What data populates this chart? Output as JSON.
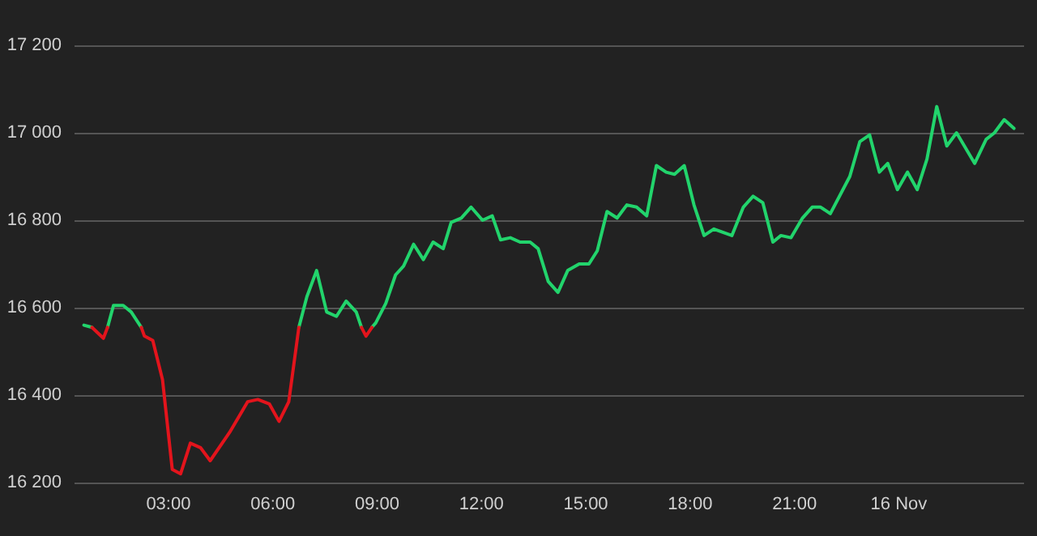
{
  "chart_data": {
    "type": "line",
    "x": [
      0.57,
      0.8,
      1.13,
      1.25,
      1.42,
      1.7,
      1.93,
      2.22,
      2.31,
      2.55,
      2.83,
      3.11,
      3.35,
      3.63,
      3.92,
      4.2,
      4.76,
      5.28,
      5.57,
      5.9,
      6.18,
      6.46,
      6.75,
      6.98,
      7.26,
      7.55,
      7.83,
      8.11,
      8.4,
      8.55,
      8.68,
      8.85,
      8.96,
      9.25,
      9.53,
      9.76,
      10.05,
      10.33,
      10.61,
      10.9,
      11.13,
      11.42,
      11.7,
      12.03,
      12.31,
      12.55,
      12.83,
      13.11,
      13.4,
      13.63,
      13.92,
      14.2,
      14.48,
      14.81,
      15.09,
      15.33,
      15.61,
      15.9,
      16.18,
      16.46,
      16.75,
      17.03,
      17.31,
      17.55,
      17.83,
      18.11,
      18.4,
      18.68,
      19.2,
      19.53,
      19.81,
      20.09,
      20.38,
      20.61,
      20.9,
      21.23,
      21.51,
      21.75,
      22.03,
      22.59,
      22.88,
      23.16,
      23.44,
      23.68,
      23.96,
      24.25,
      24.53,
      24.81,
      25.09,
      25.38,
      25.66,
      26.18,
      26.51,
      26.75,
      27.03,
      27.31
    ],
    "series": [
      {
        "color": "#22d46c",
        "values": [
          16560,
          16555,
          null,
          16555,
          16605,
          16605,
          16590,
          16555,
          null,
          null,
          null,
          null,
          null,
          null,
          null,
          null,
          null,
          null,
          null,
          null,
          null,
          null,
          16555,
          16625,
          16685,
          16590,
          16580,
          16615,
          16590,
          16555,
          null,
          16555,
          16565,
          16610,
          16675,
          16695,
          16745,
          16710,
          16750,
          16735,
          16795,
          16805,
          16830,
          16800,
          16810,
          16755,
          16760,
          16750,
          16750,
          16735,
          16660,
          16635,
          16685,
          16700,
          16700,
          16730,
          16820,
          16805,
          16835,
          16830,
          16810,
          16925,
          16910,
          16905,
          16925,
          16835,
          16765,
          16780,
          16765,
          16830,
          16855,
          16840,
          16750,
          16765,
          16760,
          16805,
          16830,
          16830,
          16815,
          16900,
          16980,
          16995,
          16910,
          16930,
          16870,
          16910,
          16870,
          16940,
          17060,
          16970,
          17000,
          16930,
          16985,
          17000,
          17030,
          17010
        ]
      },
      {
        "color": "#e3141c",
        "values": [
          null,
          16555,
          16530,
          16555,
          null,
          null,
          null,
          16555,
          16535,
          16525,
          16435,
          16230,
          16220,
          16290,
          16280,
          16250,
          16315,
          16385,
          16390,
          16380,
          16340,
          16385,
          16555,
          null,
          null,
          null,
          null,
          null,
          null,
          16555,
          16535,
          16555,
          null,
          null,
          null,
          null,
          null,
          null,
          null,
          null,
          null,
          null,
          null,
          null,
          null,
          null,
          null,
          null,
          null,
          null,
          null,
          null,
          null,
          null,
          null,
          null,
          null,
          null,
          null,
          null,
          null,
          null,
          null,
          null,
          null,
          null,
          null,
          null,
          null,
          null,
          null,
          null,
          null,
          null,
          null,
          null,
          null,
          null,
          null,
          null,
          null,
          null,
          null,
          null,
          null,
          null,
          null,
          null,
          null,
          null,
          null,
          null,
          null,
          null,
          null,
          null
        ]
      }
    ],
    "xlim": [
      0.3,
      27.6
    ],
    "xticks": [
      {
        "value": 3,
        "label": "03:00"
      },
      {
        "value": 6,
        "label": "06:00"
      },
      {
        "value": 9,
        "label": "09:00"
      },
      {
        "value": 12,
        "label": "12:00"
      },
      {
        "value": 15,
        "label": "15:00"
      },
      {
        "value": 18,
        "label": "18:00"
      },
      {
        "value": 21,
        "label": "21:00"
      },
      {
        "value": 24,
        "label": "16 Nov"
      }
    ],
    "ylim": [
      16200,
      17200
    ],
    "yticks": [
      {
        "value": 16200,
        "label": "16 200"
      },
      {
        "value": 16400,
        "label": "16 400"
      },
      {
        "value": 16600,
        "label": "16 600"
      },
      {
        "value": 16800,
        "label": "16 800"
      },
      {
        "value": 17000,
        "label": "17 000"
      },
      {
        "value": 17200,
        "label": "17 200"
      }
    ],
    "grid": "y"
  }
}
